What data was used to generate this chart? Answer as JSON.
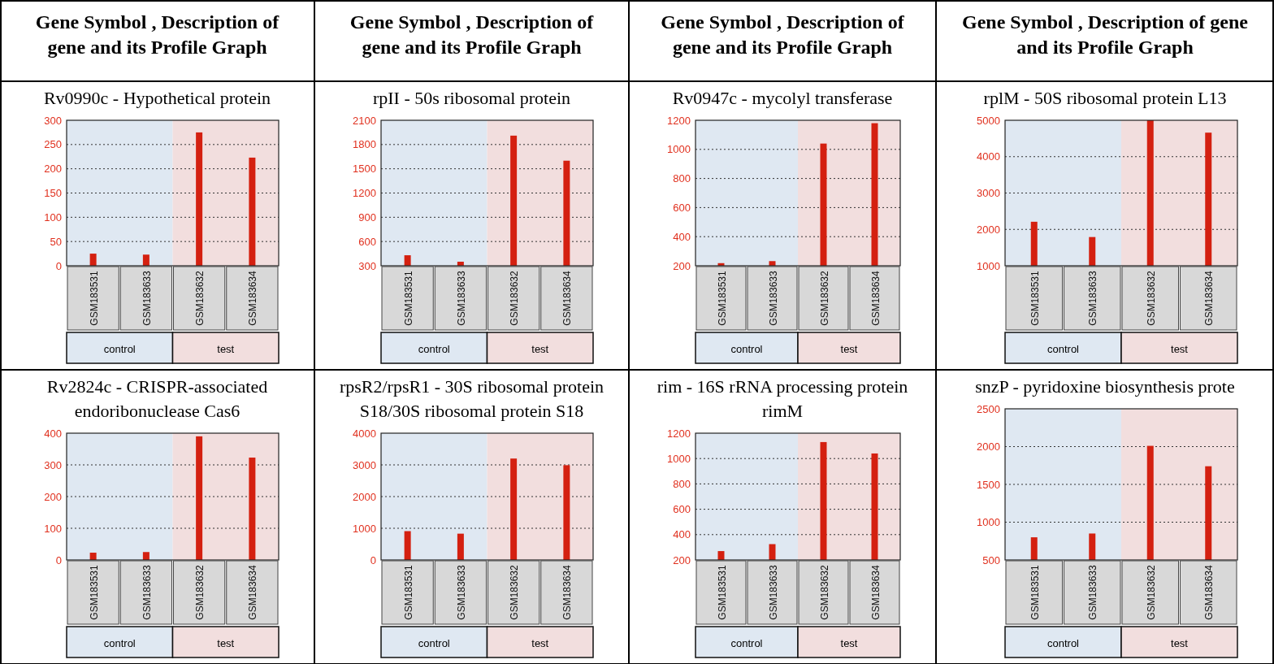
{
  "chart_data": [
    {
      "type": "bar",
      "title": "Rv0990c - Hypothetical protein",
      "annotations": [
        "Gene Symbol , Description of gene and its  Profile Graph",
        "control",
        "test"
      ],
      "categories": [
        "GSM183531",
        "GSM183633",
        "GSM183632",
        "GSM183634"
      ],
      "values": [
        25,
        23,
        275,
        223
      ],
      "color": "#d42010",
      "ylim": [
        0,
        300
      ],
      "yticks": [
        0,
        50,
        100,
        150,
        200,
        250,
        300
      ],
      "grid": "y",
      "bands": [
        {
          "axis": "x",
          "from": "GSM183531",
          "to": "GSM183633",
          "color": "#dfe8f2"
        },
        {
          "axis": "x",
          "from": "GSM183632",
          "to": "GSM183634",
          "color": "#f2dede"
        }
      ]
    },
    {
      "type": "bar",
      "title": "rpII - 50s ribosomal protein",
      "annotations": [
        "Gene Symbol , Description of gene and its  Profile Graph",
        "control",
        "test"
      ],
      "categories": [
        "GSM183531",
        "GSM183633",
        "GSM183632",
        "GSM183634"
      ],
      "values": [
        430,
        350,
        1910,
        1600
      ],
      "color": "#d42010",
      "ylim": [
        300,
        2100
      ],
      "yticks": [
        300,
        600,
        900,
        1200,
        1500,
        1800,
        2100
      ],
      "grid": "y",
      "bands": [
        {
          "axis": "x",
          "from": "GSM183531",
          "to": "GSM183633",
          "color": "#dfe8f2"
        },
        {
          "axis": "x",
          "from": "GSM183632",
          "to": "GSM183634",
          "color": "#f2dede"
        }
      ]
    },
    {
      "type": "bar",
      "title": "Rv0947c - mycolyl transferase",
      "annotations": [
        "Gene Symbol , Description of gene and its  Profile Graph",
        "control",
        "test"
      ],
      "categories": [
        "GSM183531",
        "GSM183633",
        "GSM183632",
        "GSM183634"
      ],
      "values": [
        218,
        232,
        1040,
        1180
      ],
      "color": "#d42010",
      "ylim": [
        200,
        1200
      ],
      "yticks": [
        200,
        400,
        600,
        800,
        1000,
        1200
      ],
      "grid": "y",
      "bands": [
        {
          "axis": "x",
          "from": "GSM183531",
          "to": "GSM183633",
          "color": "#dfe8f2"
        },
        {
          "axis": "x",
          "from": "GSM183632",
          "to": "GSM183634",
          "color": "#f2dede"
        }
      ]
    },
    {
      "type": "bar",
      "title": "rplM - 50S ribosomal protein L13",
      "annotations": [
        "Gene Symbol , Description of gene and its  Profile Graph",
        "control",
        "test"
      ],
      "categories": [
        "GSM183531",
        "GSM183633",
        "GSM183632",
        "GSM183634"
      ],
      "values": [
        2210,
        1790,
        5000,
        4660
      ],
      "color": "#d42010",
      "ylim": [
        1000,
        5000
      ],
      "yticks": [
        1000,
        2000,
        3000,
        4000,
        5000
      ],
      "grid": "y",
      "bands": [
        {
          "axis": "x",
          "from": "GSM183531",
          "to": "GSM183633",
          "color": "#dfe8f2"
        },
        {
          "axis": "x",
          "from": "GSM183632",
          "to": "GSM183634",
          "color": "#f2dede"
        }
      ]
    },
    {
      "type": "bar",
      "title": "Rv2824c - CRISPR-associated endoribonuclease Cas6",
      "annotations": [
        "control",
        "test"
      ],
      "categories": [
        "GSM183531",
        "GSM183633",
        "GSM183632",
        "GSM183634"
      ],
      "values": [
        23,
        25,
        390,
        323
      ],
      "color": "#d42010",
      "ylim": [
        0,
        400
      ],
      "yticks": [
        0,
        100,
        200,
        300,
        400
      ],
      "grid": "y",
      "bands": [
        {
          "axis": "x",
          "from": "GSM183531",
          "to": "GSM183633",
          "color": "#dfe8f2"
        },
        {
          "axis": "x",
          "from": "GSM183632",
          "to": "GSM183634",
          "color": "#f2dede"
        }
      ]
    },
    {
      "type": "bar",
      "title": "rpsR2/rpsR1 - 30S ribosomal protein S18/30S ribosomal protein S18",
      "annotations": [
        "control",
        "test"
      ],
      "categories": [
        "GSM183531",
        "GSM183633",
        "GSM183632",
        "GSM183634"
      ],
      "values": [
        910,
        830,
        3200,
        2990
      ],
      "color": "#d42010",
      "ylim": [
        0,
        4000
      ],
      "yticks": [
        0,
        1000,
        2000,
        3000,
        4000
      ],
      "grid": "y",
      "bands": [
        {
          "axis": "x",
          "from": "GSM183531",
          "to": "GSM183633",
          "color": "#dfe8f2"
        },
        {
          "axis": "x",
          "from": "GSM183632",
          "to": "GSM183634",
          "color": "#f2dede"
        }
      ]
    },
    {
      "type": "bar",
      "title": "rim - 16S rRNA processing protein rimM",
      "annotations": [
        "control",
        "test"
      ],
      "categories": [
        "GSM183531",
        "GSM183633",
        "GSM183632",
        "GSM183634"
      ],
      "values": [
        270,
        325,
        1130,
        1040
      ],
      "color": "#d42010",
      "ylim": [
        200,
        1200
      ],
      "yticks": [
        200,
        400,
        600,
        800,
        1000,
        1200
      ],
      "grid": "y",
      "bands": [
        {
          "axis": "x",
          "from": "GSM183531",
          "to": "GSM183633",
          "color": "#dfe8f2"
        },
        {
          "axis": "x",
          "from": "GSM183632",
          "to": "GSM183634",
          "color": "#f2dede"
        }
      ]
    },
    {
      "type": "bar",
      "title": "snzP - pyridoxine biosynthesis prote",
      "annotations": [
        "control",
        "test"
      ],
      "categories": [
        "GSM183531",
        "GSM183633",
        "GSM183632",
        "GSM183634"
      ],
      "values": [
        800,
        850,
        2010,
        1740
      ],
      "color": "#d42010",
      "ylim": [
        500,
        2500
      ],
      "yticks": [
        500,
        1000,
        1500,
        2000,
        2500
      ],
      "grid": "y",
      "bands": [
        {
          "axis": "x",
          "from": "GSM183531",
          "to": "GSM183633",
          "color": "#dfe8f2"
        },
        {
          "axis": "x",
          "from": "GSM183632",
          "to": "GSM183634",
          "color": "#f2dede"
        }
      ]
    }
  ]
}
